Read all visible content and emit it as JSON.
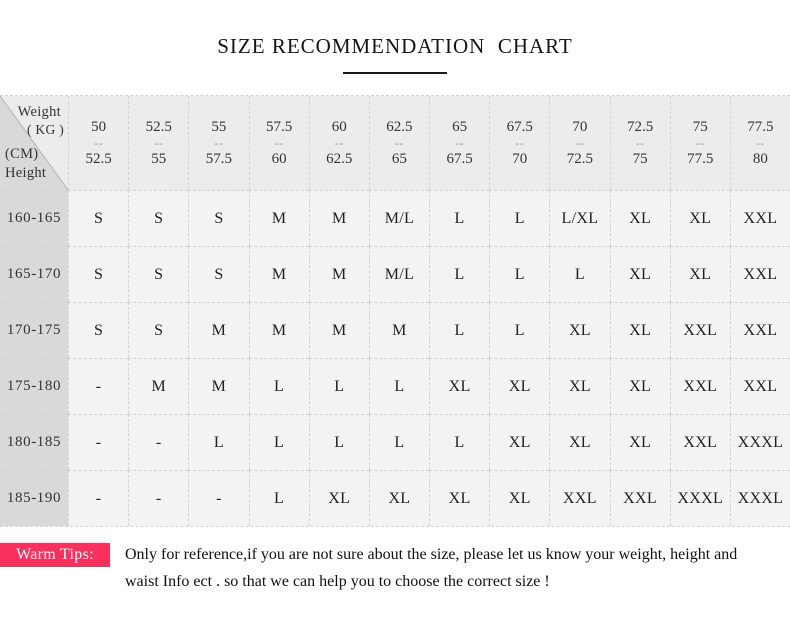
{
  "title": "SIZE RECOMMENDATION  CHART",
  "colors": {
    "badge": "#f7305e",
    "header_bg": "#ececec",
    "label_bg": "#d9d9d9",
    "cell_bg": "#f3f3f3",
    "grid_line": "#d2d2d2"
  },
  "chart_data": {
    "type": "table",
    "title": "SIZE RECOMMENDATION  CHART",
    "col_axis": {
      "label": "Weight",
      "unit": "( KG )"
    },
    "row_axis": {
      "unit": "(CM)",
      "label": "Height"
    },
    "range_separator": "--",
    "weight_columns": [
      {
        "from": "50",
        "to": "52.5"
      },
      {
        "from": "52.5",
        "to": "55"
      },
      {
        "from": "55",
        "to": "57.5"
      },
      {
        "from": "57.5",
        "to": "60"
      },
      {
        "from": "60",
        "to": "62.5"
      },
      {
        "from": "62.5",
        "to": "65"
      },
      {
        "from": "65",
        "to": "67.5"
      },
      {
        "from": "67.5",
        "to": "70"
      },
      {
        "from": "70",
        "to": "72.5"
      },
      {
        "from": "72.5",
        "to": "75"
      },
      {
        "from": "75",
        "to": "77.5"
      },
      {
        "from": "77.5",
        "to": "80"
      }
    ],
    "rows": [
      {
        "height_cm": "160-165",
        "sizes": [
          "S",
          "S",
          "S",
          "M",
          "M",
          "M/L",
          "L",
          "L",
          "L/XL",
          "XL",
          "XL",
          "XXL"
        ]
      },
      {
        "height_cm": "165-170",
        "sizes": [
          "S",
          "S",
          "S",
          "M",
          "M",
          "M/L",
          "L",
          "L",
          "L",
          "XL",
          "XL",
          "XXL"
        ]
      },
      {
        "height_cm": "170-175",
        "sizes": [
          "S",
          "S",
          "M",
          "M",
          "M",
          "M",
          "L",
          "L",
          "XL",
          "XL",
          "XXL",
          "XXL"
        ]
      },
      {
        "height_cm": "175-180",
        "sizes": [
          "-",
          "M",
          "M",
          "L",
          "L",
          "L",
          "XL",
          "XL",
          "XL",
          "XL",
          "XXL",
          "XXL"
        ]
      },
      {
        "height_cm": "180-185",
        "sizes": [
          "-",
          "-",
          "L",
          "L",
          "L",
          "L",
          "L",
          "XL",
          "XL",
          "XL",
          "XXL",
          "XXXL"
        ]
      },
      {
        "height_cm": "185-190",
        "sizes": [
          "-",
          "-",
          "-",
          "L",
          "XL",
          "XL",
          "XL",
          "XL",
          "XXL",
          "XXL",
          "XXXL",
          "XXXL"
        ]
      }
    ]
  },
  "warm_tips": {
    "label": "Warm Tips:",
    "lines": [
      "Only for reference,if you are not sure about the size, please let us know your weight, height and",
      "waist Info ect . so that we can help you to choose the correct size !"
    ]
  }
}
